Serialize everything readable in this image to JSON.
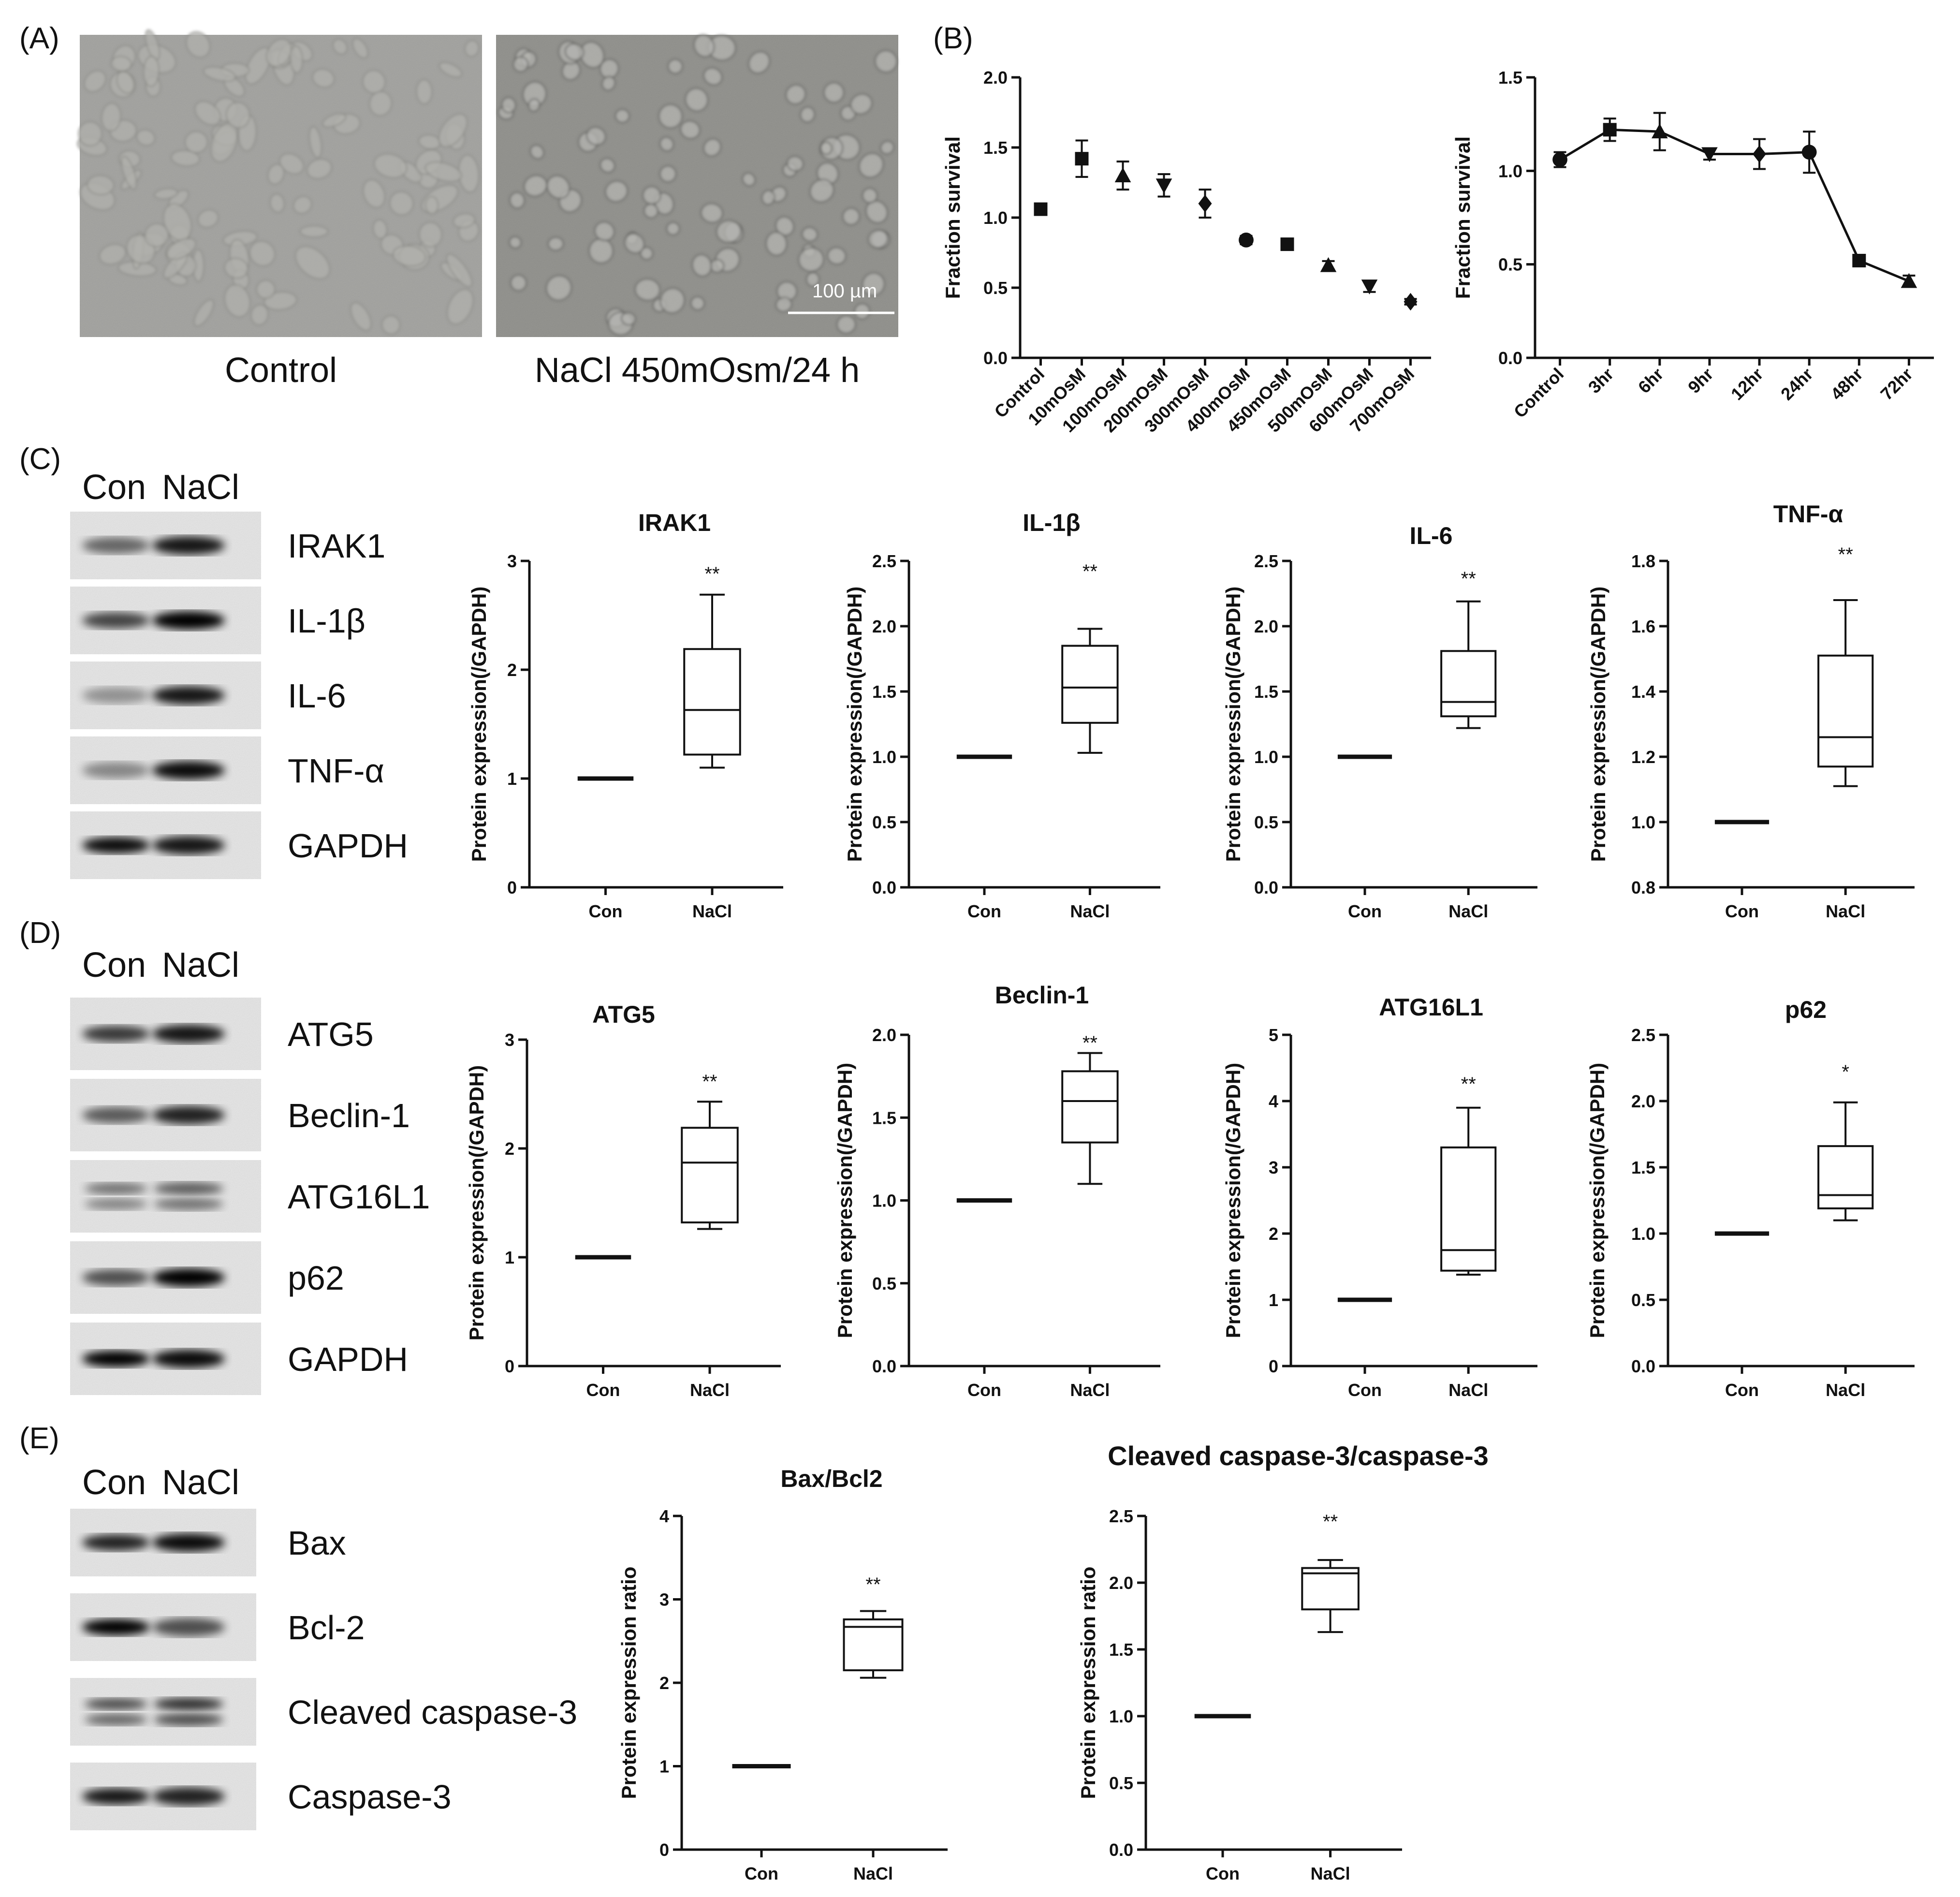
{
  "panels": {
    "A": {
      "label": "(A)",
      "captions": [
        "Control",
        "NaCl 450mOsm/24 h"
      ],
      "scale_bar": "100 µm"
    },
    "B": {
      "label": "(B)"
    },
    "C": {
      "label": "(C)",
      "lanes": [
        "Con",
        "NaCl"
      ],
      "bands": [
        "IRAK1",
        "IL-1β",
        "IL-6",
        "TNF-α",
        "GAPDH"
      ]
    },
    "D": {
      "label": "(D)",
      "lanes": [
        "Con",
        "NaCl"
      ],
      "bands": [
        "ATG5",
        "Beclin-1",
        "ATG16L1",
        "p62",
        "GAPDH"
      ]
    },
    "E": {
      "label": "(E)",
      "lanes": [
        "Con",
        "NaCl"
      ],
      "bands": [
        "Bax",
        "Bcl-2",
        "Cleaved caspase-3",
        "Caspase-3"
      ]
    }
  },
  "chart_data": [
    {
      "id": "B1",
      "type": "scatter",
      "title": "",
      "ylabel": "Fraction survival",
      "categories": [
        "Control",
        "10mOsM",
        "100mOsM",
        "200mOsM",
        "300mOsM",
        "400mOsM",
        "450mOsM",
        "500mOsM",
        "600mOsM",
        "700mOsM"
      ],
      "values": [
        1.06,
        1.42,
        1.3,
        1.23,
        1.1,
        0.84,
        0.81,
        0.66,
        0.51,
        0.4
      ],
      "errors": [
        0.03,
        0.13,
        0.1,
        0.08,
        0.1,
        0.03,
        0.03,
        0.03,
        0.04,
        0.02
      ],
      "markers": [
        "square",
        "square",
        "triangle",
        "triangle-down",
        "diamond",
        "circle",
        "square",
        "triangle",
        "triangle-down",
        "diamond"
      ],
      "ylim": [
        0,
        2.0
      ],
      "yticks": [
        "0.0",
        "0.5",
        "1.0",
        "1.5",
        "2.0"
      ],
      "grid": false,
      "connected": false
    },
    {
      "id": "B2",
      "type": "line",
      "title": "",
      "ylabel": "Fraction survival",
      "categories": [
        "Control",
        "3hr",
        "6hr",
        "9hr",
        "12hr",
        "24hr",
        "48hr",
        "72hr"
      ],
      "values": [
        1.06,
        1.22,
        1.21,
        1.09,
        1.09,
        1.1,
        0.52,
        0.41
      ],
      "errors": [
        0.04,
        0.06,
        0.1,
        0.03,
        0.08,
        0.11,
        0.03,
        0.03
      ],
      "markers": [
        "circle",
        "square",
        "triangle",
        "triangle-down",
        "diamond",
        "circle",
        "square",
        "triangle"
      ],
      "ylim": [
        0,
        1.5
      ],
      "yticks": [
        "0.0",
        "0.5",
        "1.0",
        "1.5"
      ],
      "grid": false,
      "connected": true
    },
    {
      "id": "C1",
      "type": "box",
      "title": "IRAK1",
      "ylabel": "Protein expression(/GAPDH)",
      "categories": [
        "Con",
        "NaCl"
      ],
      "control": 1.0,
      "box": {
        "min": 1.1,
        "q1": 1.22,
        "median": 1.63,
        "q3": 2.19,
        "max": 2.69
      },
      "significance": "**",
      "ylim": [
        0,
        3
      ],
      "yticks": [
        "0",
        "1",
        "2",
        "3"
      ]
    },
    {
      "id": "C2",
      "type": "box",
      "title": "IL-1β",
      "ylabel": "Protein expression(/GAPDH)",
      "categories": [
        "Con",
        "NaCl"
      ],
      "control": 1.0,
      "box": {
        "min": 1.03,
        "q1": 1.26,
        "median": 1.53,
        "q3": 1.85,
        "max": 1.98
      },
      "significance": "**",
      "ylim": [
        0,
        2.5
      ],
      "yticks": [
        "0.0",
        "0.5",
        "1.0",
        "1.5",
        "2.0",
        "2.5"
      ]
    },
    {
      "id": "C3",
      "type": "box",
      "title": "IL-6",
      "ylabel": "Protein expression(/GAPDH)",
      "categories": [
        "Con",
        "NaCl"
      ],
      "control": 1.0,
      "box": {
        "min": 1.22,
        "q1": 1.31,
        "median": 1.42,
        "q3": 1.81,
        "max": 2.19
      },
      "significance": "**",
      "ylim": [
        0,
        2.5
      ],
      "yticks": [
        "0.0",
        "0.5",
        "1.0",
        "1.5",
        "2.0",
        "2.5"
      ]
    },
    {
      "id": "C4",
      "type": "box",
      "title": "TNF-α",
      "ylabel": "Protein expression(/GAPDH)",
      "categories": [
        "Con",
        "NaCl"
      ],
      "control": 1.0,
      "box": {
        "min": 1.11,
        "q1": 1.17,
        "median": 1.26,
        "q3": 1.51,
        "max": 1.68
      },
      "significance": "**",
      "ylim": [
        0.8,
        1.8
      ],
      "yticks": [
        "0.8",
        "1.0",
        "1.2",
        "1.4",
        "1.6",
        "1.8"
      ]
    },
    {
      "id": "D1",
      "type": "box",
      "title": "ATG5",
      "ylabel": "Protein expression(/GAPDH)",
      "categories": [
        "Con",
        "NaCl"
      ],
      "control": 1.0,
      "box": {
        "min": 1.26,
        "q1": 1.32,
        "median": 1.87,
        "q3": 2.19,
        "max": 2.43
      },
      "significance": "**",
      "ylim": [
        0,
        3
      ],
      "yticks": [
        "0",
        "1",
        "2",
        "3"
      ]
    },
    {
      "id": "D2",
      "type": "box",
      "title": "Beclin-1",
      "ylabel": "Protein expression(/GAPDH)",
      "categories": [
        "Con",
        "NaCl"
      ],
      "control": 1.0,
      "box": {
        "min": 1.1,
        "q1": 1.35,
        "median": 1.6,
        "q3": 1.78,
        "max": 1.89
      },
      "significance": "**",
      "ylim": [
        0,
        2.0
      ],
      "yticks": [
        "0.0",
        "0.5",
        "1.0",
        "1.5",
        "2.0"
      ]
    },
    {
      "id": "D3",
      "type": "box",
      "title": "ATG16L1",
      "ylabel": "Protein expression(/GAPDH)",
      "categories": [
        "Con",
        "NaCl"
      ],
      "control": 1.0,
      "box": {
        "min": 1.38,
        "q1": 1.44,
        "median": 1.75,
        "q3": 3.3,
        "max": 3.9
      },
      "significance": "**",
      "ylim": [
        0,
        5
      ],
      "yticks": [
        "0",
        "1",
        "2",
        "3",
        "4",
        "5"
      ]
    },
    {
      "id": "D4",
      "type": "box",
      "title": "p62",
      "ylabel": "Protein expression(/GAPDH)",
      "categories": [
        "Con",
        "NaCl"
      ],
      "control": 1.0,
      "box": {
        "min": 1.1,
        "q1": 1.19,
        "median": 1.29,
        "q3": 1.66,
        "max": 1.99
      },
      "significance": "*",
      "ylim": [
        0,
        2.5
      ],
      "yticks": [
        "0.0",
        "0.5",
        "1.0",
        "1.5",
        "2.0",
        "2.5"
      ]
    },
    {
      "id": "E1",
      "type": "box",
      "title": "Bax/Bcl2",
      "ylabel": "Protein expression ratio",
      "categories": [
        "Con",
        "NaCl"
      ],
      "control": 1.0,
      "box": {
        "min": 2.06,
        "q1": 2.15,
        "median": 2.67,
        "q3": 2.76,
        "max": 2.86
      },
      "significance": "**",
      "ylim": [
        0,
        4
      ],
      "yticks": [
        "0",
        "1",
        "2",
        "3",
        "4"
      ]
    },
    {
      "id": "E2",
      "type": "box",
      "title": "Cleaved caspase-3/caspase-3",
      "ylabel": "Protein expression ratio",
      "categories": [
        "Con",
        "NaCl"
      ],
      "control": 1.0,
      "box": {
        "min": 1.63,
        "q1": 1.8,
        "median": 2.07,
        "q3": 2.11,
        "max": 2.17
      },
      "significance": "**",
      "ylim": [
        0,
        2.5
      ],
      "yticks": [
        "0.0",
        "0.5",
        "1.0",
        "1.5",
        "2.0",
        "2.5"
      ]
    }
  ]
}
